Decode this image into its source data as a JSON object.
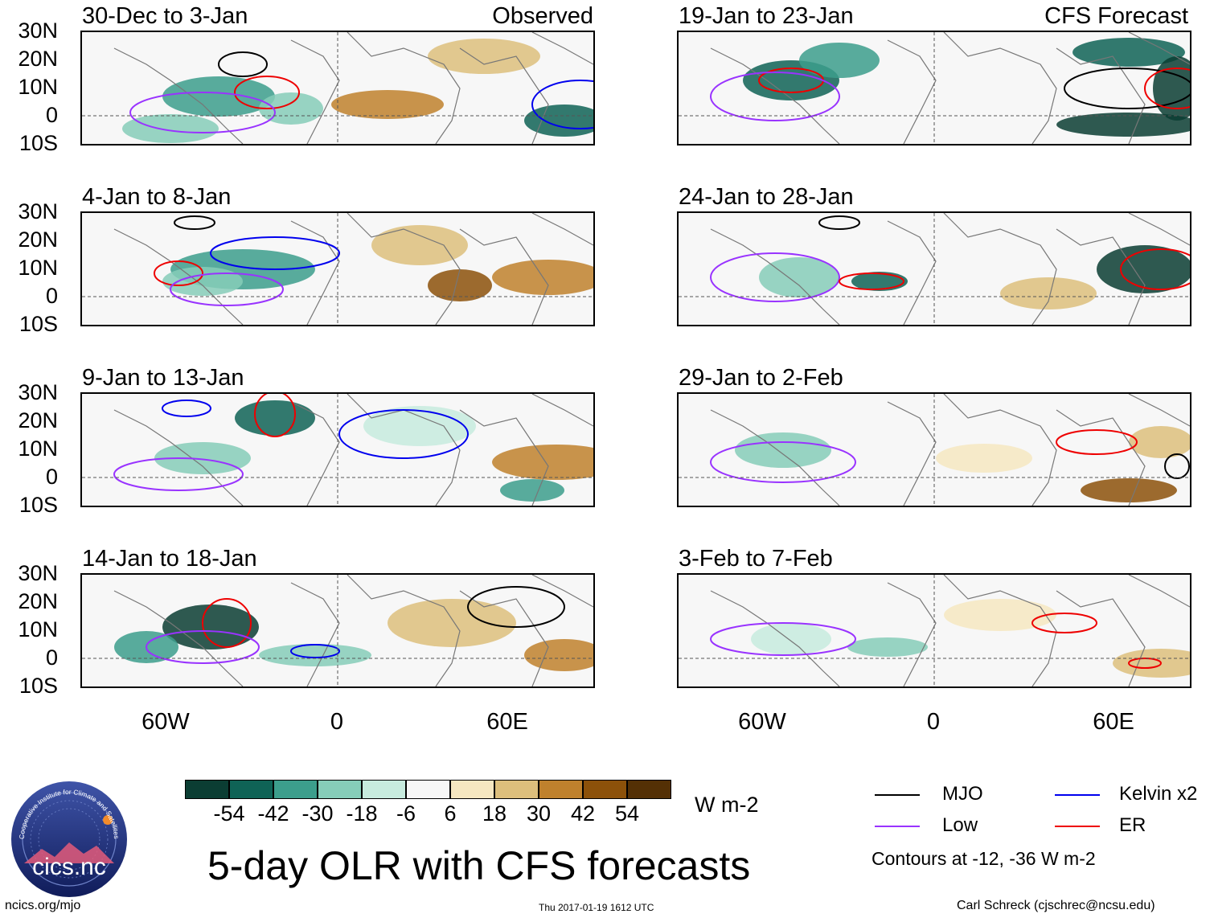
{
  "panels": {
    "left": [
      {
        "title": "30-Dec to 3-Jan",
        "tag": "Observed"
      },
      {
        "title": "4-Jan to 8-Jan",
        "tag": ""
      },
      {
        "title": "9-Jan to 13-Jan",
        "tag": ""
      },
      {
        "title": "14-Jan to 18-Jan",
        "tag": ""
      }
    ],
    "right": [
      {
        "title": "19-Jan to 23-Jan",
        "tag": "CFS Forecast"
      },
      {
        "title": "24-Jan to 28-Jan",
        "tag": ""
      },
      {
        "title": "29-Jan to 2-Feb",
        "tag": ""
      },
      {
        "title": "3-Feb to 7-Feb",
        "tag": ""
      }
    ]
  },
  "axes": {
    "lat_labels": [
      "30N",
      "20N",
      "10N",
      "0",
      "10S"
    ],
    "lon_labels": [
      "60W",
      "0",
      "60E"
    ]
  },
  "colorbar": {
    "colors": [
      "#0b3d33",
      "#0f6356",
      "#3c9e8c",
      "#86cdb9",
      "#c7ebde",
      "#f7f7f7",
      "#f6e7c1",
      "#ddbf7c",
      "#bf812d",
      "#8c510a",
      "#543005"
    ],
    "labels": [
      "-54",
      "-42",
      "-30",
      "-18",
      "-6",
      "6",
      "18",
      "30",
      "42",
      "54"
    ],
    "units": "W m-2"
  },
  "main_title": "5-day OLR with CFS forecasts",
  "legend": {
    "items": [
      {
        "label": "MJO",
        "color": "#000000"
      },
      {
        "label": "Kelvin x2",
        "color": "#0000ee"
      },
      {
        "label": "Low",
        "color": "#9933ff"
      },
      {
        "label": "ER",
        "color": "#ee0000"
      }
    ],
    "note": "Contours at -12, -36 W m-2"
  },
  "footer": {
    "url": "ncics.org/mjo",
    "timestamp": "Thu 2017-01-19 1612 UTC",
    "credit": "Carl Schreck (cjschrec@ncsu.edu)"
  },
  "logo": {
    "text": "cics.nc",
    "ring_text": "Cooperative Institute for Climate and Satellites",
    "background": "#1c2f7a"
  }
}
